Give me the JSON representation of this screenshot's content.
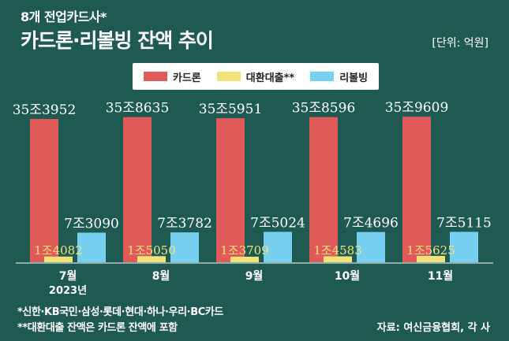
{
  "header": {
    "kicker": "8개 전업카드사*",
    "title": "카드론·리볼빙 잔액 추이",
    "unit": "[단위: 억원]"
  },
  "footnotes": {
    "note1": "*신한·KB국민·삼성·롯데·현대·하나·우리·BC카드",
    "note2": "**대환대출 잔액은 카드론 잔액에 포함",
    "source": "자료: 여신금융협회, 각 사"
  },
  "colors": {
    "card_loan": "#e05a5a",
    "refinance": "#f2e27a",
    "revolving": "#77d0f0",
    "label_white": "#ffffff",
    "label_yellow": "#f3e27a"
  },
  "chart_data": {
    "type": "bar",
    "categories": [
      "7월",
      "8월",
      "9월",
      "10월",
      "11월"
    ],
    "year_label": "2023년",
    "series": [
      {
        "name": "카드론",
        "values": [
          353952,
          358635,
          355951,
          358596,
          359609
        ],
        "labels": [
          "35조3952",
          "35조8635",
          "35조5951",
          "35조8596",
          "35조9609"
        ]
      },
      {
        "name": "대환대출**",
        "values": [
          14082,
          15050,
          13709,
          14583,
          15625
        ],
        "labels": [
          "1조4082",
          "1조5050",
          "1조3709",
          "1조4583",
          "1조5625"
        ]
      },
      {
        "name": "리볼빙",
        "values": [
          73090,
          73782,
          75024,
          74696,
          75115
        ],
        "labels": [
          "7조3090",
          "7조3782",
          "7조5024",
          "7조4696",
          "7조5115"
        ]
      }
    ],
    "ylim": [
      0,
      360000
    ],
    "legend_position": "top-center",
    "grid": false
  }
}
